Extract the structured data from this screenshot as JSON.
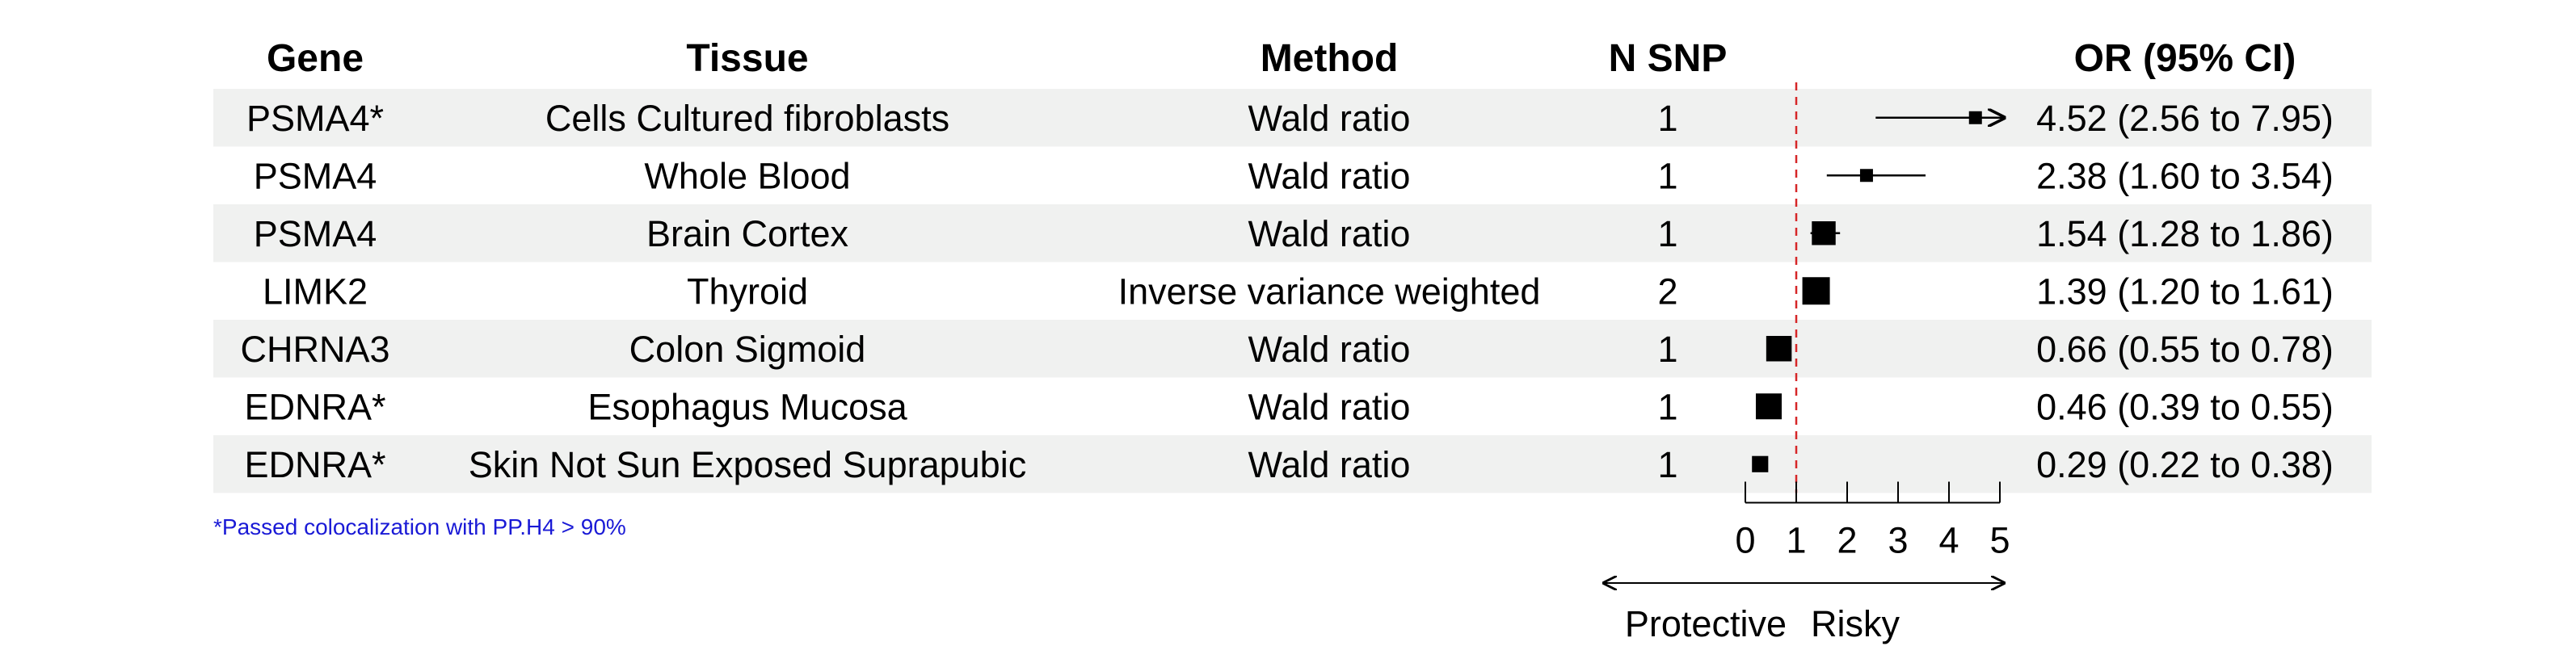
{
  "table": {
    "headers": {
      "gene": "Gene",
      "tissue": "Tissue",
      "method": "Method",
      "nsnp": "N SNP",
      "or": "OR (95% CI)"
    },
    "footnote": "*Passed colocalization with PP.H4 > 90%",
    "stripe_color": "#f0f1f0"
  },
  "chart_data": {
    "type": "forest",
    "reference_line": {
      "x": 1,
      "color": "#d62728",
      "style": "dashed"
    },
    "xlim": [
      0,
      5
    ],
    "x_ticks": [
      0,
      1,
      2,
      3,
      4,
      5
    ],
    "x_tick_labels": [
      "0",
      "1",
      "2",
      "3",
      "4",
      "5"
    ],
    "direction_labels": {
      "left": "Protective",
      "right": "Risky"
    },
    "rows": [
      {
        "gene": "PSMA4*",
        "tissue": "Cells Cultured fibroblasts",
        "method": "Wald ratio",
        "nsnp": "1",
        "or": 4.52,
        "lower": 2.56,
        "upper": 7.95,
        "label": "4.52 (2.56 to 7.95)"
      },
      {
        "gene": "PSMA4",
        "tissue": "Whole Blood",
        "method": "Wald ratio",
        "nsnp": "1",
        "or": 2.38,
        "lower": 1.6,
        "upper": 3.54,
        "label": "2.38 (1.60 to 3.54)"
      },
      {
        "gene": "PSMA4",
        "tissue": "Brain Cortex",
        "method": "Wald ratio",
        "nsnp": "1",
        "or": 1.54,
        "lower": 1.28,
        "upper": 1.86,
        "label": "1.54 (1.28 to 1.86)"
      },
      {
        "gene": "LIMK2",
        "tissue": "Thyroid",
        "method": "Inverse variance weighted",
        "nsnp": "2",
        "or": 1.39,
        "lower": 1.2,
        "upper": 1.61,
        "label": "1.39 (1.20 to 1.61)"
      },
      {
        "gene": "CHRNA3",
        "tissue": "Colon Sigmoid",
        "method": "Wald ratio",
        "nsnp": "1",
        "or": 0.66,
        "lower": 0.55,
        "upper": 0.78,
        "label": "0.66 (0.55 to 0.78)"
      },
      {
        "gene": "EDNRA*",
        "tissue": "Esophagus Mucosa",
        "method": "Wald ratio",
        "nsnp": "1",
        "or": 0.46,
        "lower": 0.39,
        "upper": 0.55,
        "label": "0.46 (0.39 to 0.55)"
      },
      {
        "gene": "EDNRA*",
        "tissue": "Skin Not Sun Exposed Suprapubic",
        "method": "Wald ratio",
        "nsnp": "1",
        "or": 0.29,
        "lower": 0.22,
        "upper": 0.38,
        "label": "0.29 (0.22 to 0.38)"
      }
    ]
  }
}
